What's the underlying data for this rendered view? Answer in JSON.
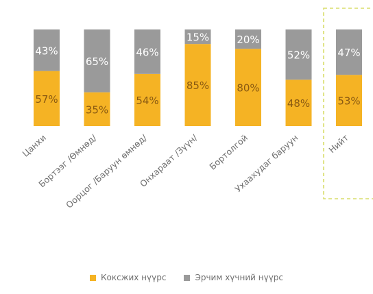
{
  "chart_data": {
    "type": "bar",
    "stacked": true,
    "percent": true,
    "categories": [
      "Цанхи",
      "Бортээг /Өмнөд/",
      "Оорцог /Баруун өмнөд/",
      "Онхараат /Зүүн/",
      "Бортолгой",
      "Ухаахудаг баруун",
      "Нийт"
    ],
    "series": [
      {
        "name": "Коксжих нүүрс",
        "color": "#F5B324",
        "values": [
          57,
          35,
          54,
          85,
          80,
          48,
          53
        ],
        "labels": [
          "57%",
          "35%",
          "54%",
          "85%",
          "80%",
          "48%",
          "53%"
        ]
      },
      {
        "name": "Эрчим хүчний нүүрс",
        "color": "#9A9A9A",
        "values": [
          43,
          65,
          46,
          15,
          20,
          52,
          47
        ],
        "labels": [
          "43%",
          "65%",
          "46%",
          "15%",
          "20%",
          "52%",
          "47%"
        ]
      }
    ],
    "ylim": [
      0,
      100
    ],
    "grid": false,
    "legend_position": "bottom",
    "highlighted_category": "Нийт"
  },
  "legend": {
    "items": [
      {
        "label": "Коксжих нүүрс",
        "color": "#F5B324"
      },
      {
        "label": "Эрчим хүчний нүүрс",
        "color": "#9A9A9A"
      }
    ]
  }
}
